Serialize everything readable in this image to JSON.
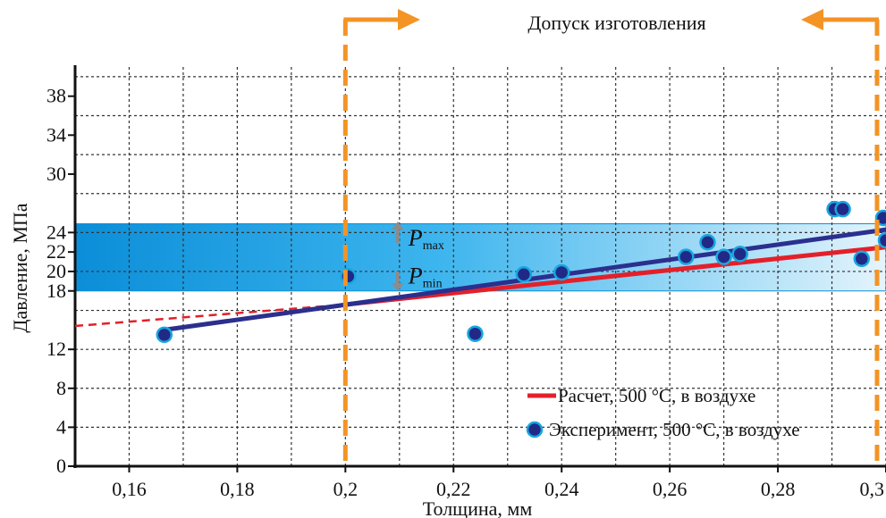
{
  "chart_data": {
    "type": "scatter",
    "title": "",
    "xlabel": "Толщина, мм",
    "ylabel": "Давление, МПа",
    "xlim": [
      0.15,
      0.3
    ],
    "ylim": [
      0,
      41
    ],
    "x_ticks": [
      {
        "value": 0.16,
        "label": "0,16"
      },
      {
        "value": 0.18,
        "label": "0,18"
      },
      {
        "value": 0.2,
        "label": "0,2"
      },
      {
        "value": 0.22,
        "label": "0,22"
      },
      {
        "value": 0.24,
        "label": "0,24"
      },
      {
        "value": 0.26,
        "label": "0,26"
      },
      {
        "value": 0.28,
        "label": "0,28"
      },
      {
        "value": 0.3,
        "label": "0,3"
      }
    ],
    "y_ticks": [
      {
        "value": 0,
        "label": "0"
      },
      {
        "value": 4,
        "label": "4"
      },
      {
        "value": 8,
        "label": "8"
      },
      {
        "value": 12,
        "label": "12"
      },
      {
        "value": 18,
        "label": "18"
      },
      {
        "value": 20,
        "label": "20"
      },
      {
        "value": 22,
        "label": "22"
      },
      {
        "value": 24,
        "label": "24"
      },
      {
        "value": 30,
        "label": "30"
      },
      {
        "value": 34,
        "label": "34"
      },
      {
        "value": 38,
        "label": "38"
      }
    ],
    "x_grid": [
      0.16,
      0.17,
      0.18,
      0.19,
      0.2,
      0.21,
      0.22,
      0.23,
      0.24,
      0.25,
      0.26,
      0.27,
      0.28,
      0.29,
      0.3
    ],
    "y_grid": [
      4,
      8,
      12,
      16,
      20,
      24,
      28,
      32,
      36,
      40
    ],
    "grid": true,
    "series": [
      {
        "name": "Расчет, 500 °C, в воздухе",
        "type": "line",
        "color": "#e3202a",
        "dashed_x": [
          0.15,
          0.2
        ],
        "dashed_y": [
          14.4,
          16.6
        ],
        "x": [
          0.2,
          0.3
        ],
        "y": [
          16.6,
          22.5
        ]
      },
      {
        "name": "Эксперимент, 500 °C, в воздухе",
        "type": "scatter",
        "color": "#202a86",
        "edge_color": "#18a6e0",
        "x": [
          0.1665,
          0.2005,
          0.224,
          0.233,
          0.24,
          0.263,
          0.267,
          0.27,
          0.273,
          0.2905,
          0.292,
          0.2955,
          0.2995,
          0.3
        ],
        "y": [
          13.5,
          19.5,
          13.6,
          19.7,
          19.9,
          21.5,
          23.0,
          21.5,
          21.8,
          26.4,
          26.4,
          21.3,
          25.5,
          23.2
        ]
      },
      {
        "name": "",
        "type": "line",
        "color": "#2b2f8e",
        "x": [
          0.1665,
          0.3
        ],
        "y": [
          14.0,
          24.3
        ]
      }
    ],
    "band": {
      "y_min": 18,
      "y_max": 24.9,
      "x_min": 0.15,
      "x_max": 0.3
    },
    "tolerance": {
      "label": "Допуск изготовления",
      "x_min": 0.2,
      "x_max": 0.3,
      "color": "#f39425"
    },
    "annotations": [
      {
        "main": "P",
        "sub": "max",
        "x": 0.21,
        "y": 23.4
      },
      {
        "main": "P",
        "sub": "min",
        "x": 0.21,
        "y": 19.5
      }
    ],
    "legend": {
      "placement": "bottom-right",
      "entries": [
        {
          "label": "Расчет, 500  °C, в воздухе",
          "kind": "line"
        },
        {
          "label": "Эксперимент, 500 °C, в воздухе",
          "kind": "marker"
        }
      ]
    },
    "colors": {
      "band_dark": "#0b8ed8",
      "band_light": "#e4f4fc",
      "axis": "#111111",
      "grid": "#333333",
      "arrow": "#8c8c8c"
    }
  }
}
